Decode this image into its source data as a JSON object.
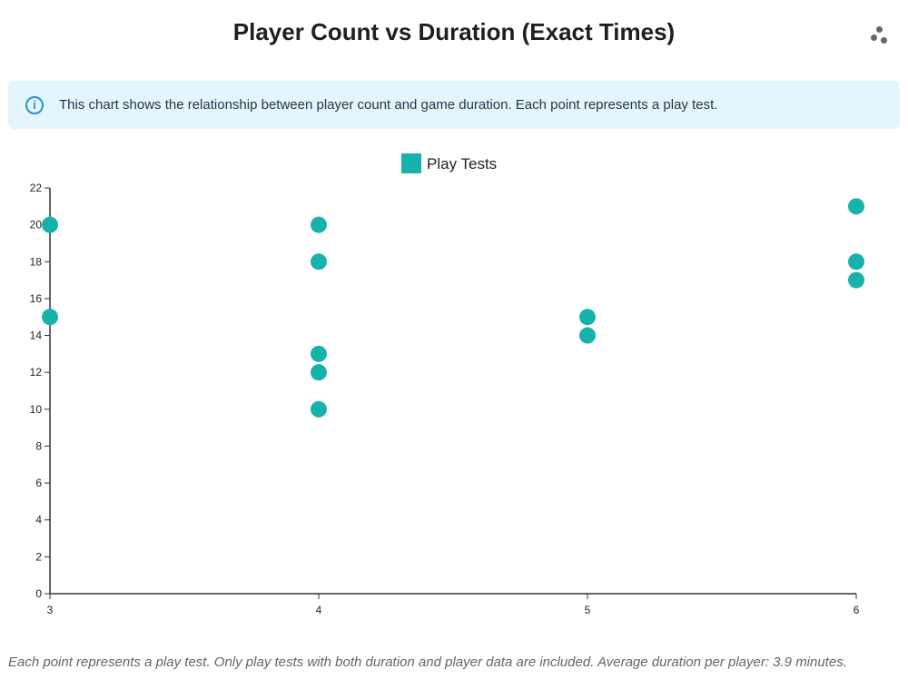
{
  "header": {
    "title": "Player Count vs Duration (Exact Times)",
    "menu_icon": "scatter-menu-icon"
  },
  "info_banner": {
    "icon": "info-icon",
    "icon_glyph": "i",
    "text": "This chart shows the relationship between player count and game duration. Each point represents a play test."
  },
  "footer": {
    "text": "Each point represents a play test. Only play tests with both duration and player data are included. Average duration per player: 3.9 minutes."
  },
  "colors": {
    "series": "#17b2ac",
    "info_bg": "#e4f5fb",
    "info_icon": "#2a8fcf"
  },
  "chart_data": {
    "type": "scatter",
    "title": "Player Count vs Duration (Exact Times)",
    "xlabel": "",
    "ylabel": "",
    "xlim": [
      3,
      6
    ],
    "ylim": [
      0,
      22
    ],
    "x_ticks": [
      3,
      4,
      5,
      6
    ],
    "y_ticks": [
      0,
      2,
      4,
      6,
      8,
      10,
      12,
      14,
      16,
      18,
      20,
      22
    ],
    "grid": false,
    "legend": {
      "position": "top-center",
      "entries": [
        "Play Tests"
      ]
    },
    "series": [
      {
        "name": "Play Tests",
        "color": "#17b2ac",
        "points": [
          {
            "x": 3,
            "y": 20
          },
          {
            "x": 3,
            "y": 15
          },
          {
            "x": 4,
            "y": 20
          },
          {
            "x": 4,
            "y": 18
          },
          {
            "x": 4,
            "y": 13
          },
          {
            "x": 4,
            "y": 12
          },
          {
            "x": 4,
            "y": 10
          },
          {
            "x": 5,
            "y": 15
          },
          {
            "x": 5,
            "y": 14
          },
          {
            "x": 6,
            "y": 21
          },
          {
            "x": 6,
            "y": 18
          },
          {
            "x": 6,
            "y": 17
          }
        ]
      }
    ]
  }
}
